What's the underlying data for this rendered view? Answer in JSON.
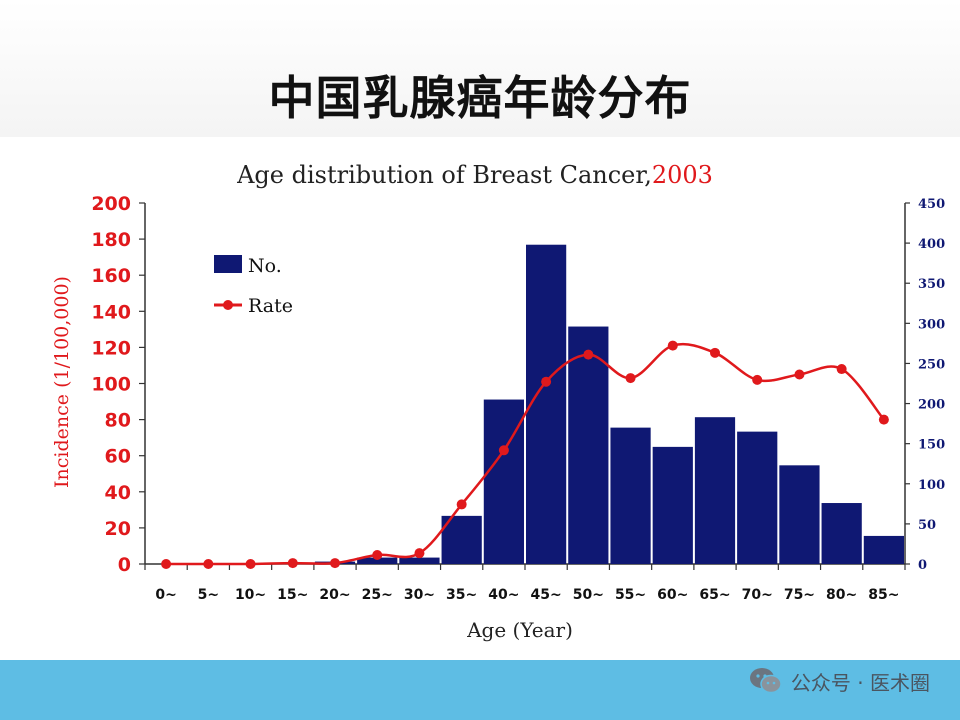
{
  "slide_title": "中国乳腺癌年龄分布",
  "watermark": "公众号 · 医术圈",
  "chart_data": {
    "type": "bar",
    "title": "Age distribution of Breast Cancer,",
    "title_year": "2003",
    "xlabel": "Age (Year)",
    "ylabel": "Incidence (1/100,000)",
    "categories": [
      "0~",
      "5~",
      "10~",
      "15~",
      "20~",
      "25~",
      "30~",
      "35~",
      "40~",
      "45~",
      "50~",
      "55~",
      "60~",
      "65~",
      "70~",
      "75~",
      "80~",
      "85~"
    ],
    "series": [
      {
        "name": "No.",
        "type": "bar",
        "axis": "right",
        "color": "#0f1873",
        "values": [
          0,
          0,
          0,
          0,
          3,
          8,
          8,
          60,
          205,
          398,
          296,
          170,
          146,
          183,
          165,
          123,
          76,
          35
        ]
      },
      {
        "name": "Rate",
        "type": "line",
        "axis": "left",
        "color": "#e0191c",
        "values": [
          0,
          0,
          0,
          0.5,
          0.5,
          5,
          6,
          33,
          63,
          101,
          116,
          103,
          121,
          117,
          102,
          105,
          108,
          80
        ]
      }
    ],
    "y_left": {
      "min": 0,
      "max": 200,
      "ticks": [
        "0",
        "20",
        "40",
        "60",
        "80",
        "100",
        "120",
        "140",
        "160",
        "180",
        "200"
      ],
      "color": "#e0191c"
    },
    "y_right": {
      "min": 0,
      "max": 450,
      "ticks": [
        "0",
        "50",
        "100",
        "150",
        "200",
        "250",
        "300",
        "350",
        "400",
        "450"
      ],
      "color": "#0f1873"
    },
    "legend_position": "top-left",
    "grid": false
  }
}
